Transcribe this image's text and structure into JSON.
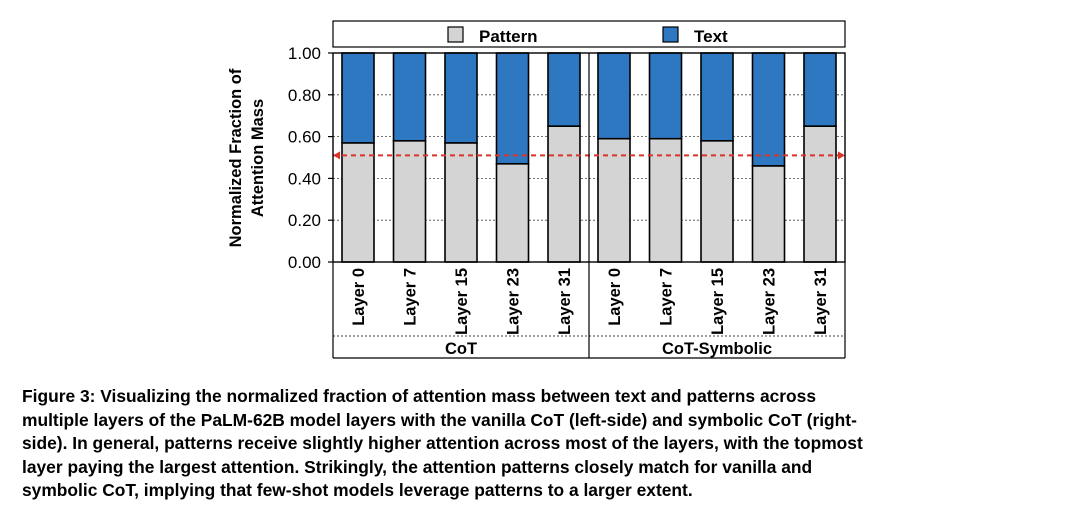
{
  "chart_data": {
    "type": "bar",
    "stacked": true,
    "normalized": true,
    "ylabel_line1": "Normalized Fraction of",
    "ylabel_line2": "Attention Mass",
    "ylim": [
      0,
      1
    ],
    "yticks": [
      "0.00",
      "0.20",
      "0.40",
      "0.60",
      "0.80",
      "1.00"
    ],
    "ytick_values": [
      0,
      0.2,
      0.4,
      0.6,
      0.8,
      1.0
    ],
    "grid": "horizontal dotted",
    "legend": {
      "placement": "top",
      "entries": [
        {
          "name": "Pattern",
          "color": "#d4d4d4"
        },
        {
          "name": "Text",
          "color": "#2e78c2"
        }
      ]
    },
    "reference_line": {
      "value": 0.51,
      "style": "dashed",
      "color": "#d9352a"
    },
    "groups": [
      {
        "name": "CoT",
        "categories": [
          "Layer 0",
          "Layer 7",
          "Layer 15",
          "Layer 23",
          "Layer 31"
        ],
        "series": [
          {
            "name": "Pattern",
            "values": [
              0.57,
              0.58,
              0.57,
              0.47,
              0.65
            ]
          },
          {
            "name": "Text",
            "values": [
              0.43,
              0.42,
              0.43,
              0.53,
              0.35
            ]
          }
        ]
      },
      {
        "name": "CoT-Symbolic",
        "categories": [
          "Layer 0",
          "Layer 7",
          "Layer 15",
          "Layer 23",
          "Layer 31"
        ],
        "series": [
          {
            "name": "Pattern",
            "values": [
              0.59,
              0.59,
              0.58,
              0.46,
              0.65
            ]
          },
          {
            "name": "Text",
            "values": [
              0.41,
              0.41,
              0.42,
              0.54,
              0.35
            ]
          }
        ]
      }
    ]
  },
  "caption": {
    "line1": "Figure 3: Visualizing the normalized fraction of attention mass between text and patterns across",
    "line2": "multiple layers of the PaLM-62B model layers with the vanilla CoT (left-side) and symbolic CoT (right-",
    "line3": "side). In general, patterns receive slightly higher attention across most of the layers, with the topmost",
    "line4": "layer paying the largest attention.  Strikingly, the attention patterns closely match for vanilla and",
    "line5": "symbolic CoT, implying that few-shot models leverage patterns to a larger extent."
  }
}
